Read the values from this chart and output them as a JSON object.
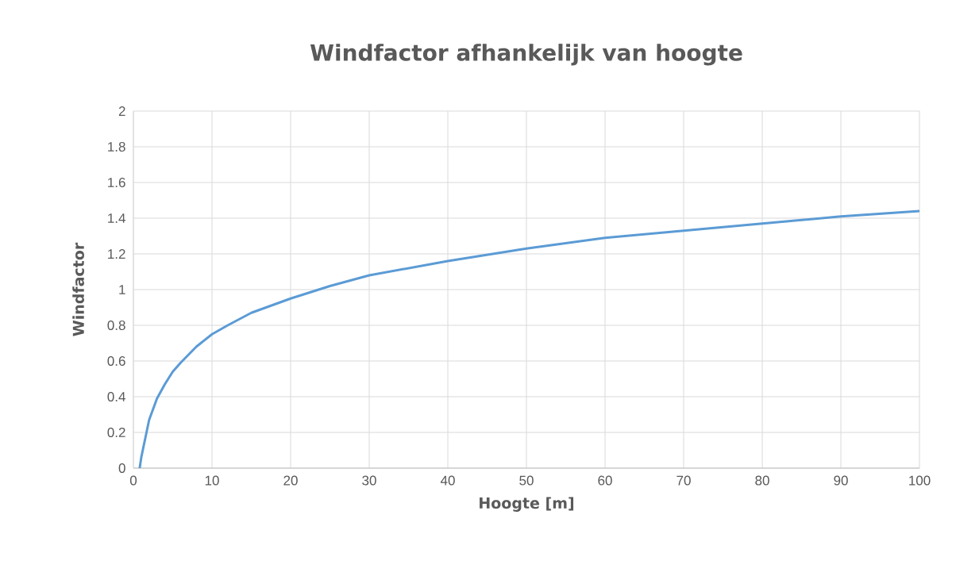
{
  "chart_data": {
    "type": "line",
    "title": "Windfactor afhankelijk van hoogte",
    "xlabel": "Hoogte [m]",
    "ylabel": "Windfactor",
    "x": [
      0.8,
      1,
      2,
      3,
      4,
      5,
      6,
      8,
      10,
      12,
      15,
      20,
      25,
      30,
      40,
      50,
      60,
      70,
      80,
      90,
      100
    ],
    "series": [
      {
        "color": "#5b9bd5",
        "values": [
          0,
          0.06,
          0.27,
          0.39,
          0.47,
          0.54,
          0.59,
          0.68,
          0.75,
          0.8,
          0.87,
          0.95,
          1.02,
          1.08,
          1.16,
          1.23,
          1.29,
          1.33,
          1.37,
          1.41,
          1.44
        ]
      }
    ],
    "xlim": [
      0,
      100
    ],
    "ylim": [
      0,
      2
    ],
    "xticks": [
      0,
      10,
      20,
      30,
      40,
      50,
      60,
      70,
      80,
      90,
      100
    ],
    "yticks": [
      0,
      0.2,
      0.4,
      0.6,
      0.8,
      1,
      1.2,
      1.4,
      1.6,
      1.8,
      2
    ],
    "grid": true,
    "marker": "none",
    "line_style": "solid"
  }
}
